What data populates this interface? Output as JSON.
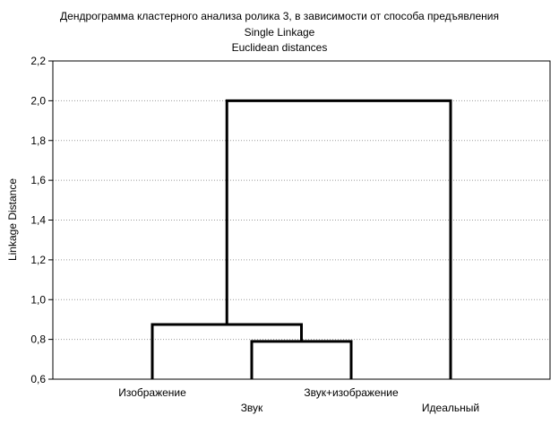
{
  "chart_data": {
    "type": "dendrogram",
    "title": "Дендрограмма кластерного анализа ролика 3, в зависимости от способа предъявления",
    "subtitle_method": "Single Linkage",
    "subtitle_metric": "Euclidean distances",
    "ylabel": "Linkage Distance",
    "ylim": [
      0.6,
      2.2
    ],
    "yticks": [
      0.6,
      0.8,
      1.0,
      1.2,
      1.4,
      1.6,
      1.8,
      2.0,
      2.2
    ],
    "ytick_labels": [
      "0,6",
      "0,8",
      "1,0",
      "1,2",
      "1,4",
      "1,6",
      "1,8",
      "2,0",
      "2,2"
    ],
    "grid": true,
    "leaves": [
      "Изображение",
      "Звук",
      "Звук+изображение",
      "Идеальный"
    ],
    "merges": [
      {
        "left": "Звук",
        "right": "Звук+изображение",
        "height": 0.79
      },
      {
        "left": "Изображение",
        "right": [
          "Звук",
          "Звук+изображение"
        ],
        "height": 0.875
      },
      {
        "left": [
          "Изображение",
          "Звук",
          "Звук+изображение"
        ],
        "right": "Идеальный",
        "height": 2.0
      }
    ]
  }
}
